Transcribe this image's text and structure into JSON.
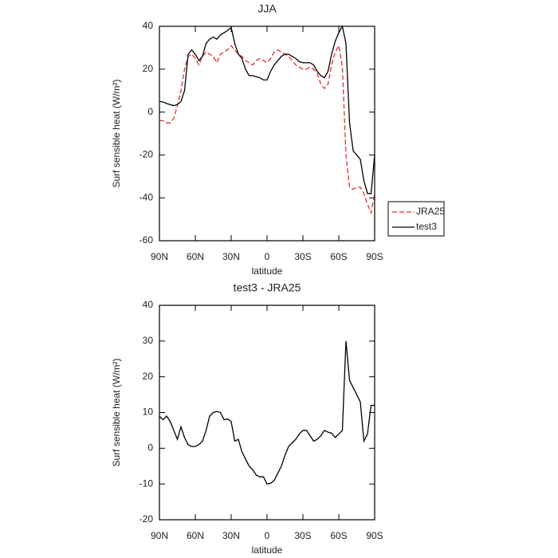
{
  "chart_data": [
    {
      "type": "line",
      "title": "JJA",
      "xlabel": "latitude",
      "ylabel": "Surf sensible heat (W/m²)",
      "x": [
        90,
        87,
        84,
        81,
        78,
        75,
        72,
        69,
        66,
        63,
        60,
        57,
        54,
        51,
        48,
        45,
        42,
        39,
        36,
        33,
        30,
        27,
        24,
        21,
        18,
        15,
        12,
        9,
        6,
        3,
        0,
        -3,
        -6,
        -9,
        -12,
        -15,
        -18,
        -21,
        -24,
        -27,
        -30,
        -33,
        -36,
        -39,
        -42,
        -45,
        -48,
        -51,
        -54,
        -57,
        -60,
        -63,
        -66,
        -69,
        -72,
        -75,
        -78,
        -81,
        -84,
        -87,
        -90
      ],
      "series": [
        {
          "name": "JRA25",
          "color": "#e03030",
          "style": "dashed",
          "values": [
            -4,
            -4,
            -5,
            -5,
            -3,
            3,
            10,
            20,
            26,
            27,
            25,
            22,
            26,
            28,
            27,
            26,
            23,
            27,
            28,
            29,
            31,
            29,
            27,
            26,
            24,
            23,
            22,
            24,
            25,
            24,
            23,
            25,
            28,
            29,
            28,
            27,
            26,
            24,
            22,
            21,
            20,
            20,
            21,
            20,
            18,
            13,
            11,
            13,
            22,
            28,
            31,
            21,
            -20,
            -35,
            -36,
            -35,
            -35,
            -38,
            -43,
            -47,
            -38
          ]
        },
        {
          "name": "test3",
          "color": "#000000",
          "style": "solid",
          "values": [
            5,
            4.7,
            4,
            3.5,
            3,
            3.5,
            5,
            10,
            27,
            29,
            27,
            24,
            26,
            32,
            34,
            35,
            34,
            36,
            37,
            38,
            39.5,
            32,
            27,
            25,
            20,
            17,
            17,
            16.5,
            16,
            15,
            15,
            19,
            22,
            24,
            26,
            27,
            27,
            26,
            25,
            23.5,
            23,
            23,
            23,
            22,
            19,
            17,
            16,
            19,
            27,
            33,
            37,
            40,
            32,
            -5,
            -18,
            -20,
            -22,
            -32,
            -38,
            -38,
            -20
          ]
        }
      ],
      "xlim": [
        90,
        -90
      ],
      "xticks": [
        {
          "value": 90,
          "label": "90N"
        },
        {
          "value": 60,
          "label": "60N"
        },
        {
          "value": 30,
          "label": "30N"
        },
        0,
        {
          "value": -30,
          "label": "30S"
        },
        {
          "value": -60,
          "label": "60S"
        },
        {
          "value": -90,
          "label": "90S"
        }
      ],
      "ylim": [
        -60,
        40
      ],
      "yticks": [
        -60,
        -40,
        -20,
        0,
        20,
        40
      ],
      "legend": "right"
    },
    {
      "type": "line",
      "title": "test3 - JRA25",
      "xlabel": "latitude",
      "ylabel": "Surf sensible heat (W/m²)",
      "x": [
        90,
        87,
        84,
        81,
        78,
        75,
        72,
        69,
        66,
        63,
        60,
        57,
        54,
        51,
        48,
        45,
        42,
        39,
        36,
        33,
        30,
        27,
        24,
        21,
        18,
        15,
        12,
        9,
        6,
        3,
        0,
        -3,
        -6,
        -9,
        -12,
        -15,
        -18,
        -21,
        -24,
        -27,
        -30,
        -33,
        -36,
        -39,
        -42,
        -45,
        -48,
        -51,
        -54,
        -57,
        -60,
        -63,
        -66,
        -69,
        -72,
        -75,
        -78,
        -81,
        -84,
        -87,
        -90
      ],
      "series": [
        {
          "color": "#000000",
          "style": "solid",
          "values": [
            9,
            8,
            9,
            7.5,
            5,
            2.5,
            6,
            3,
            1,
            0.5,
            0.5,
            1,
            2,
            5,
            9,
            10,
            10.3,
            10,
            8,
            8.2,
            7.5,
            2,
            2.5,
            -1,
            -3,
            -5,
            -6,
            -7.5,
            -8,
            -8,
            -10,
            -9.8,
            -9,
            -7,
            -5,
            -2,
            0.5,
            1.5,
            2.5,
            4,
            5,
            5,
            3.5,
            2,
            2.5,
            3.5,
            5,
            4.5,
            4.2,
            3,
            4,
            5,
            30,
            19,
            17,
            15,
            13,
            2,
            4,
            12,
            12
          ]
        }
      ],
      "xlim": [
        90,
        -90
      ],
      "xticks": [
        {
          "value": 90,
          "label": "90N"
        },
        {
          "value": 60,
          "label": "60N"
        },
        {
          "value": 30,
          "label": "30N"
        },
        0,
        {
          "value": -30,
          "label": "30S"
        },
        {
          "value": -60,
          "label": "60S"
        },
        {
          "value": -90,
          "label": "90S"
        }
      ],
      "ylim": [
        -20,
        40
      ],
      "yticks": [
        -20,
        -10,
        0,
        10,
        20,
        30,
        40
      ]
    }
  ]
}
